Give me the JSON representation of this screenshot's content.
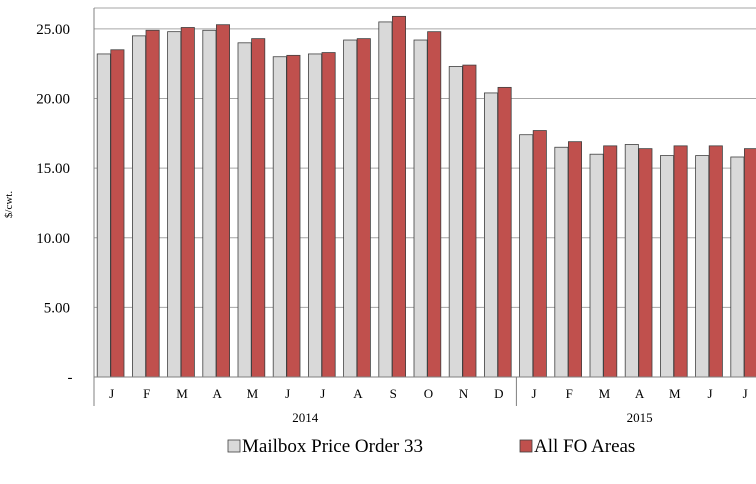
{
  "chart_data": {
    "type": "bar",
    "title": "",
    "xlabel": "",
    "ylabel": "$/cwt.",
    "ylim": [
      0,
      26.5
    ],
    "yticks": [
      {
        "value": 0,
        "label": "-"
      },
      {
        "value": 5,
        "label": "5.00"
      },
      {
        "value": 10,
        "label": "10.00"
      },
      {
        "value": 15,
        "label": "15.00"
      },
      {
        "value": 20,
        "label": "20.00"
      },
      {
        "value": 25,
        "label": "25.00"
      }
    ],
    "grid": true,
    "legend_position": "bottom",
    "categories": [
      "J",
      "F",
      "M",
      "A",
      "M",
      "J",
      "J",
      "A",
      "S",
      "O",
      "N",
      "D",
      "J",
      "F",
      "M",
      "A",
      "M",
      "J",
      "J"
    ],
    "groups": [
      {
        "label": "2014",
        "start": 0,
        "count": 12
      },
      {
        "label": "2015",
        "start": 12,
        "count": 7
      }
    ],
    "series": [
      {
        "name": "Mailbox Price Order 33",
        "color": "#d9d9d9",
        "values": [
          23.2,
          24.5,
          24.8,
          24.9,
          24.0,
          23.0,
          23.2,
          24.2,
          25.5,
          24.2,
          22.3,
          20.4,
          17.4,
          16.5,
          16.0,
          16.7,
          15.9,
          15.9,
          15.8
        ]
      },
      {
        "name": "All FO Areas",
        "color": "#c0504d",
        "values": [
          23.5,
          24.9,
          25.1,
          25.3,
          24.3,
          23.1,
          23.3,
          24.3,
          25.9,
          24.8,
          22.4,
          20.8,
          17.7,
          16.9,
          16.6,
          16.4,
          16.6,
          16.6,
          16.4
        ]
      }
    ]
  }
}
